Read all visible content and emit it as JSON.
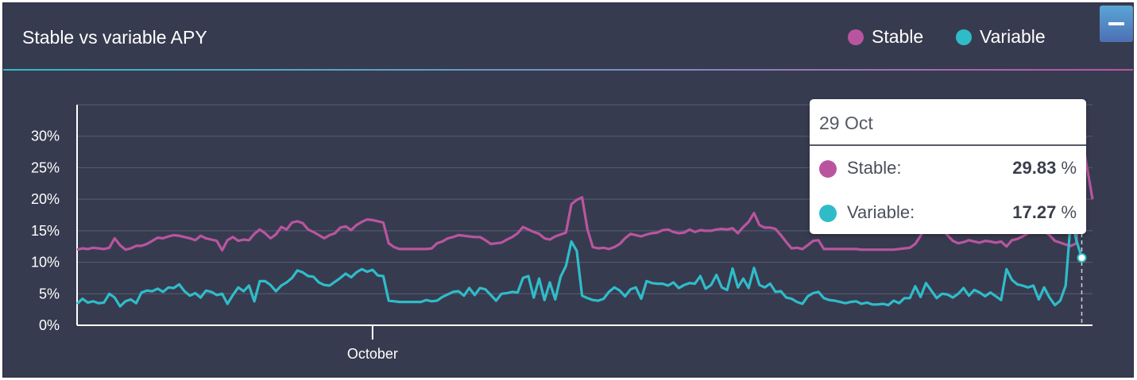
{
  "title": "Stable vs variable APY",
  "legend": [
    {
      "label": "Stable",
      "color": "#b9559f"
    },
    {
      "label": "Variable",
      "color": "#2fbcc9"
    }
  ],
  "minimize_icon": "minus-icon",
  "tooltip": {
    "date": "29 Oct",
    "rows": [
      {
        "label": "Stable:",
        "value": "29.83",
        "unit": "%",
        "color": "#b9559f"
      },
      {
        "label": "Variable:",
        "value": "17.27",
        "unit": "%",
        "color": "#2fbcc9"
      }
    ]
  },
  "chart_data": {
    "type": "line",
    "title": "Stable vs variable APY",
    "xlabel": "",
    "ylabel": "",
    "ylim": [
      0,
      35
    ],
    "y_ticks": [
      "0%",
      "5%",
      "10%",
      "15%",
      "20%",
      "25%",
      "30%"
    ],
    "x_ticks": [
      {
        "label": "October",
        "index": 55
      }
    ],
    "grid": true,
    "legend_position": "top-right",
    "series": [
      {
        "name": "Stable",
        "color": "#b9559f",
        "values": [
          12.0,
          12.2,
          12.1,
          12.3,
          12.2,
          12.1,
          12.3,
          13.8,
          12.7,
          12.0,
          12.2,
          12.6,
          12.6,
          12.9,
          13.4,
          13.9,
          13.8,
          14.1,
          14.3,
          14.2,
          14.0,
          13.8,
          13.5,
          14.2,
          13.8,
          13.6,
          13.4,
          11.9,
          13.5,
          14.0,
          13.4,
          13.6,
          13.5,
          14.5,
          15.2,
          14.6,
          13.8,
          14.4,
          15.6,
          15.2,
          16.3,
          16.5,
          16.2,
          15.2,
          14.8,
          14.3,
          13.8,
          14.3,
          14.6,
          15.5,
          15.7,
          15.1,
          15.9,
          16.4,
          16.8,
          16.7,
          16.5,
          16.3,
          13.0,
          12.4,
          12.1,
          12.1,
          12.1,
          12.1,
          12.1,
          12.1,
          12.2,
          13.0,
          13.3,
          13.8,
          14.0,
          14.3,
          14.2,
          14.1,
          14.0,
          14.0,
          13.5,
          12.9,
          13.0,
          13.1,
          13.6,
          14.0,
          14.6,
          15.6,
          15.2,
          14.8,
          14.5,
          13.8,
          13.6,
          14.1,
          14.4,
          14.7,
          19.2,
          19.9,
          20.3,
          15.2,
          12.4,
          12.2,
          12.3,
          12.1,
          12.4,
          12.9,
          13.8,
          14.5,
          14.3,
          14.1,
          14.4,
          14.6,
          14.7,
          15.1,
          15.2,
          14.8,
          14.6,
          14.7,
          15.2,
          14.8,
          15.1,
          15.0,
          15.0,
          15.2,
          15.3,
          15.2,
          15.4,
          14.6,
          15.6,
          16.4,
          17.8,
          15.9,
          15.5,
          15.5,
          15.3,
          14.3,
          13.2,
          12.2,
          12.3,
          12.1,
          12.7,
          13.4,
          13.5,
          12.1,
          12.1,
          12.1,
          12.1,
          12.1,
          12.1,
          12.1,
          12.0,
          12.0,
          12.0,
          12.0,
          12.0,
          12.0,
          12.0,
          12.1,
          12.2,
          12.3,
          12.9,
          14.2,
          15.8,
          17.2,
          16.6,
          15.2,
          14.3,
          13.4,
          13.0,
          13.2,
          13.5,
          13.3,
          13.1,
          13.4,
          13.3,
          13.1,
          13.3,
          12.5,
          13.5,
          13.7,
          14.1,
          14.6,
          15.0,
          15.3,
          14.9,
          14.3,
          13.4,
          13.1,
          12.8,
          12.6,
          13.0,
          29.83,
          25.0,
          20.0
        ]
      },
      {
        "name": "Variable",
        "color": "#2fbcc9",
        "values": [
          3.4,
          4.2,
          3.6,
          3.8,
          3.5,
          3.6,
          5.0,
          4.4,
          3.0,
          3.8,
          4.1,
          3.5,
          5.2,
          5.5,
          5.4,
          5.8,
          5.3,
          6.0,
          5.9,
          6.5,
          5.4,
          4.7,
          5.1,
          4.4,
          5.5,
          5.3,
          4.8,
          5.0,
          3.4,
          4.8,
          6.0,
          5.4,
          6.3,
          3.8,
          7.0,
          7.0,
          6.4,
          5.4,
          6.3,
          6.8,
          7.5,
          8.7,
          8.4,
          7.8,
          7.7,
          6.8,
          6.4,
          6.3,
          6.9,
          7.5,
          8.2,
          7.6,
          8.4,
          8.9,
          8.5,
          8.8,
          7.9,
          7.8,
          3.9,
          3.8,
          3.7,
          3.7,
          3.7,
          3.7,
          3.7,
          4.0,
          3.8,
          3.9,
          4.5,
          4.9,
          5.3,
          5.4,
          4.7,
          5.9,
          4.8,
          5.9,
          5.7,
          4.8,
          3.9,
          5.0,
          5.1,
          5.3,
          5.2,
          7.5,
          7.8,
          4.4,
          7.4,
          4.0,
          6.8,
          4.1,
          7.7,
          9.4,
          13.3,
          11.8,
          4.7,
          4.3,
          4.0,
          3.9,
          4.2,
          5.3,
          6.0,
          5.5,
          4.6,
          5.7,
          6.0,
          4.2,
          7.0,
          6.7,
          6.6,
          6.6,
          6.3,
          6.8,
          5.9,
          6.4,
          6.7,
          6.6,
          7.8,
          5.8,
          6.4,
          8.0,
          6.0,
          5.6,
          9.0,
          6.0,
          7.4,
          5.9,
          9.1,
          6.4,
          6.0,
          6.6,
          5.3,
          5.4,
          4.4,
          4.2,
          3.7,
          3.4,
          4.6,
          5.1,
          5.3,
          4.3,
          4.0,
          3.9,
          3.7,
          3.5,
          3.7,
          3.8,
          3.4,
          3.6,
          3.3,
          3.3,
          3.4,
          3.2,
          3.9,
          3.5,
          4.3,
          4.3,
          6.2,
          4.5,
          6.7,
          5.5,
          4.3,
          5.0,
          4.9,
          4.4,
          5.0,
          5.9,
          4.7,
          5.6,
          5.2,
          4.6,
          5.2,
          4.6,
          4.0,
          8.9,
          7.2,
          6.5,
          6.3,
          6.0,
          6.3,
          4.1,
          6.0,
          4.4,
          3.2,
          3.9,
          6.3,
          17.27,
          13.5,
          10.7
        ]
      }
    ]
  }
}
